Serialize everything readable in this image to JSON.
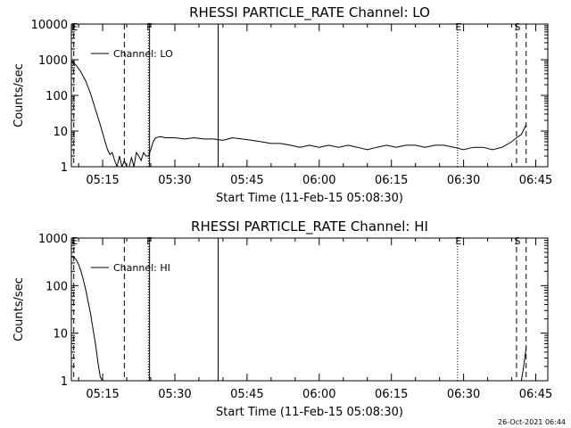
{
  "footer": {
    "timestamp": "26-Oct-2021 06:44"
  },
  "colors": {
    "background": "#ffffff",
    "foreground": "#000000"
  },
  "chart_data": [
    {
      "type": "line",
      "title": "RHESSI PARTICLE_RATE Channel: LO",
      "xlabel": "Start Time (11-Feb-15 05:08:30)",
      "ylabel": "Counts/sec",
      "yscale": "log",
      "ylim": [
        1,
        10000
      ],
      "xlim": [
        "05:08:30",
        "06:47:30"
      ],
      "x_ticks": [
        "05:15",
        "05:30",
        "05:45",
        "06:00",
        "06:15",
        "06:30",
        "06:45"
      ],
      "y_ticks": [
        "1",
        "10",
        "100",
        "1000",
        "10000"
      ],
      "legend": {
        "position": "top-left",
        "entries": [
          "Channel: LO"
        ]
      },
      "markers": [
        {
          "time": "05:09:00",
          "label": "E",
          "style": "dashed"
        },
        {
          "time": "05:19:30",
          "label": "",
          "style": "dashed"
        },
        {
          "time": "05:24:30",
          "label": "F",
          "style": "dotted"
        },
        {
          "time": "05:24:45",
          "label": "",
          "style": "solid"
        },
        {
          "time": "05:39:00",
          "label": "",
          "style": "solid"
        },
        {
          "time": "06:28:45",
          "label": "E",
          "style": "dotted"
        },
        {
          "time": "06:41:00",
          "label": "S",
          "style": "dashed"
        },
        {
          "time": "06:43:00",
          "label": "",
          "style": "dashed"
        }
      ],
      "series": [
        {
          "name": "Channel: LO",
          "x": [
            "05:08:30",
            "05:09:30",
            "05:10:30",
            "05:11:30",
            "05:12:30",
            "05:13:30",
            "05:14:30",
            "05:15:30",
            "05:16:00",
            "05:16:30",
            "05:17:00",
            "05:17:30",
            "05:18:00",
            "05:18:30",
            "05:19:00",
            "05:19:30",
            "05:20:00",
            "05:20:30",
            "05:21:00",
            "05:21:30",
            "05:22:00",
            "05:22:30",
            "05:23:00",
            "05:23:30",
            "05:24:00",
            "05:24:30",
            "05:25:00",
            "05:25:30",
            "05:26:00",
            "05:27:00",
            "05:28:00",
            "05:30:00",
            "05:32:00",
            "05:34:00",
            "05:36:00",
            "05:38:00",
            "05:40:00",
            "05:42:00",
            "05:44:00",
            "05:46:00",
            "05:48:00",
            "05:50:00",
            "05:52:00",
            "05:54:00",
            "05:56:00",
            "05:58:00",
            "06:00:00",
            "06:02:00",
            "06:04:00",
            "06:06:00",
            "06:08:00",
            "06:10:00",
            "06:12:00",
            "06:14:00",
            "06:16:00",
            "06:18:00",
            "06:20:00",
            "06:22:00",
            "06:24:00",
            "06:26:00",
            "06:28:00",
            "06:30:00",
            "06:32:00",
            "06:34:00",
            "06:36:00",
            "06:38:00",
            "06:40:00",
            "06:41:00",
            "06:42:00",
            "06:43:00"
          ],
          "y": [
            900,
            700,
            450,
            250,
            110,
            40,
            15,
            5,
            3,
            2.2,
            2.5,
            1.5,
            1,
            2,
            1,
            1.5,
            1,
            1,
            1.8,
            1,
            2.5,
            2,
            1.5,
            2.5,
            2,
            2,
            3,
            5,
            6.5,
            7,
            6.5,
            6.5,
            6,
            6.5,
            6,
            6,
            5.5,
            6.5,
            6,
            5.5,
            5,
            4.5,
            4.5,
            4,
            3.5,
            4,
            3.5,
            4,
            3.5,
            4,
            3.5,
            3,
            3.5,
            4,
            3.5,
            4,
            4,
            3.5,
            4,
            4,
            3.5,
            3,
            3.5,
            3.5,
            3,
            3.5,
            5,
            6.5,
            8,
            15
          ]
        }
      ]
    },
    {
      "type": "line",
      "title": "RHESSI PARTICLE_RATE Channel: HI",
      "xlabel": "Start Time (11-Feb-15 05:08:30)",
      "ylabel": "Counts/sec",
      "yscale": "log",
      "ylim": [
        1,
        1000
      ],
      "xlim": [
        "05:08:30",
        "06:47:30"
      ],
      "x_ticks": [
        "05:15",
        "05:30",
        "05:45",
        "06:00",
        "06:15",
        "06:30",
        "06:45"
      ],
      "y_ticks": [
        "1",
        "10",
        "100",
        "1000"
      ],
      "legend": {
        "position": "top-left",
        "entries": [
          "Channel: HI"
        ]
      },
      "markers": [
        {
          "time": "05:09:00",
          "label": "E",
          "style": "dashed"
        },
        {
          "time": "05:19:30",
          "label": "",
          "style": "dashed"
        },
        {
          "time": "05:24:30",
          "label": "F",
          "style": "dotted"
        },
        {
          "time": "05:24:45",
          "label": "",
          "style": "solid"
        },
        {
          "time": "05:39:00",
          "label": "",
          "style": "solid"
        },
        {
          "time": "06:28:45",
          "label": "E",
          "style": "dotted"
        },
        {
          "time": "06:41:00",
          "label": "S",
          "style": "dashed"
        },
        {
          "time": "06:43:00",
          "label": "",
          "style": "dashed"
        }
      ],
      "series": [
        {
          "name": "Channel: HI",
          "segments": [
            {
              "x": [
                "05:08:30",
                "05:09:00",
                "05:09:30",
                "05:10:00",
                "05:10:30",
                "05:11:00",
                "05:11:30",
                "05:12:00",
                "05:12:30",
                "05:13:00",
                "05:13:30",
                "05:14:00",
                "05:14:30",
                "05:15:00"
              ],
              "y": [
                420,
                400,
                350,
                280,
                200,
                130,
                80,
                45,
                25,
                12,
                6,
                2.5,
                1.2,
                1
              ]
            },
            {
              "x": [
                "06:42:00",
                "06:42:30",
                "06:43:00"
              ],
              "y": [
                1,
                2,
                5
              ]
            }
          ]
        }
      ]
    }
  ]
}
